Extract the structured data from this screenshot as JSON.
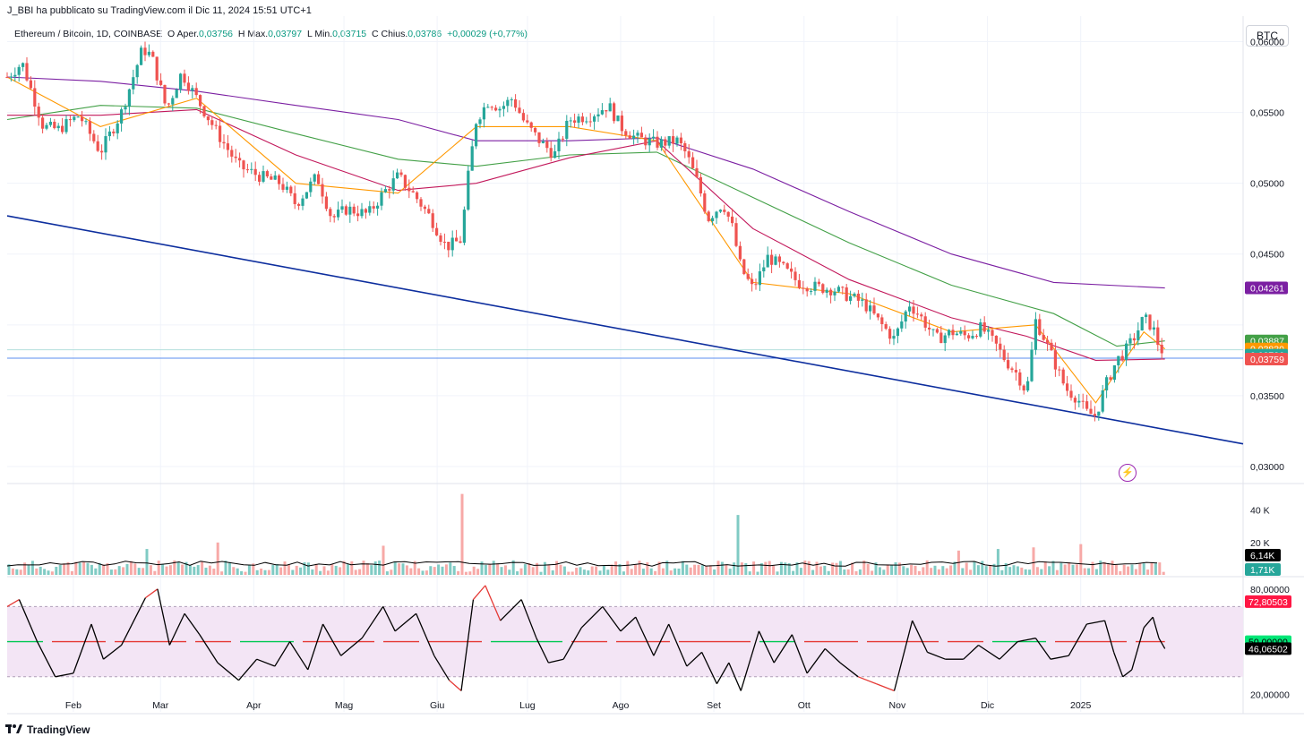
{
  "header": {
    "published": "J_BBI ha pubblicato su TradingView.com il Dic 11, 2024 15:51 UTC+1",
    "symbol": "Ethereum / Bitcoin, 1D, COINBASE",
    "o_label": "O",
    "o_prefix": "Aper.",
    "o_value": "0,03756",
    "h_label": "H",
    "h_prefix": "Max.",
    "h_value": "0,03797",
    "l_label": "L",
    "l_prefix": "Min.",
    "l_value": "0,03715",
    "c_label": "C",
    "c_prefix": "Chius.",
    "c_value": "0,03786",
    "change": "+0,00029 (+0,77%)",
    "currency_button": "BTC"
  },
  "footer": {
    "brand": "TradingView",
    "logo_icon": "tradingview-logo-icon"
  },
  "colors": {
    "up": "#26a69a",
    "down": "#ef5350",
    "ma_purple": "#7b1fa2",
    "ma_green": "#43a047",
    "ma_red": "#c2185b",
    "ma_orange": "#ff9800",
    "trendline": "#0d2e9e",
    "rsi_band": "#f3e5f5"
  },
  "chart_data": [
    {
      "type": "candlestick",
      "pane": "price",
      "x_ticks": [
        "Feb",
        "Mar",
        "Apr",
        "Mag",
        "Giu",
        "Lug",
        "Ago",
        "Set",
        "Ott",
        "Nov",
        "Dic",
        "2025"
      ],
      "y_ticks": [
        "0,06000",
        "0,05500",
        "0,05000",
        "0,04500",
        "0,03500",
        "0,03000"
      ],
      "ylim": [
        0.0288,
        0.0618
      ],
      "price_path": [
        [
          "2024-01-10",
          0.0575
        ],
        [
          "2024-01-15",
          0.0585
        ],
        [
          "2024-01-22",
          0.054
        ],
        [
          "2024-01-27",
          0.0538
        ],
        [
          "2024-02-03",
          0.0548
        ],
        [
          "2024-02-10",
          0.0522
        ],
        [
          "2024-02-17",
          0.055
        ],
        [
          "2024-02-24",
          0.0595
        ],
        [
          "2024-02-27",
          0.059
        ],
        [
          "2024-03-03",
          0.0552
        ],
        [
          "2024-03-08",
          0.0578
        ],
        [
          "2024-03-13",
          0.056
        ],
        [
          "2024-03-20",
          0.0535
        ],
        [
          "2024-03-27",
          0.0512
        ],
        [
          "2024-04-03",
          0.0505
        ],
        [
          "2024-04-10",
          0.05
        ],
        [
          "2024-04-15",
          0.0485
        ],
        [
          "2024-04-22",
          0.0505
        ],
        [
          "2024-04-27",
          0.0475
        ],
        [
          "2024-05-02",
          0.0482
        ],
        [
          "2024-05-09",
          0.0478
        ],
        [
          "2024-05-14",
          0.0493
        ],
        [
          "2024-05-19",
          0.0505
        ],
        [
          "2024-05-25",
          0.049
        ],
        [
          "2024-05-30",
          0.0475
        ],
        [
          "2024-06-04",
          0.0455
        ],
        [
          "2024-06-09",
          0.046
        ],
        [
          "2024-06-11",
          0.05
        ],
        [
          "2024-06-14",
          0.0545
        ],
        [
          "2024-06-18",
          0.0558
        ],
        [
          "2024-06-22",
          0.0553
        ],
        [
          "2024-06-26",
          0.056
        ],
        [
          "2024-06-30",
          0.0543
        ],
        [
          "2024-07-05",
          0.053
        ],
        [
          "2024-07-10",
          0.052
        ],
        [
          "2024-07-15",
          0.0545
        ],
        [
          "2024-07-22",
          0.0548
        ],
        [
          "2024-07-28",
          0.0555
        ],
        [
          "2024-08-01",
          0.054
        ],
        [
          "2024-08-06",
          0.0532
        ],
        [
          "2024-08-13",
          0.0528
        ],
        [
          "2024-08-20",
          0.053
        ],
        [
          "2024-08-23",
          0.052
        ],
        [
          "2024-08-27",
          0.0498
        ],
        [
          "2024-08-30",
          0.0475
        ],
        [
          "2024-09-04",
          0.0486
        ],
        [
          "2024-09-07",
          0.047
        ],
        [
          "2024-09-10",
          0.044
        ],
        [
          "2024-09-14",
          0.0425
        ],
        [
          "2024-09-19",
          0.0448
        ],
        [
          "2024-09-24",
          0.044
        ],
        [
          "2024-09-29",
          0.043
        ],
        [
          "2024-10-04",
          0.0427
        ],
        [
          "2024-10-11",
          0.0425
        ],
        [
          "2024-10-16",
          0.042
        ],
        [
          "2024-10-21",
          0.0415
        ],
        [
          "2024-10-26",
          0.0402
        ],
        [
          "2024-10-31",
          0.039
        ],
        [
          "2024-11-05",
          0.0415
        ],
        [
          "2024-11-09",
          0.0405
        ],
        [
          "2024-11-14",
          0.039
        ],
        [
          "2024-11-19",
          0.0395
        ],
        [
          "2024-11-24",
          0.0392
        ],
        [
          "2024-11-29",
          0.0398
        ],
        [
          "2024-12-04",
          0.0385
        ],
        [
          "2024-12-07",
          0.0375
        ],
        [
          "2024-12-11",
          0.0365
        ],
        [
          "2024-12-14",
          0.0352
        ],
        [
          "2024-12-17",
          0.0403
        ],
        [
          "2024-12-20",
          0.039
        ],
        [
          "2024-12-23",
          0.0375
        ],
        [
          "2024-12-27",
          0.0355
        ],
        [
          "2024-12-31",
          0.0348
        ],
        [
          "2025-01-03",
          0.0338
        ],
        [
          "2025-01-06",
          0.0336
        ],
        [
          "2025-01-09",
          0.0356
        ],
        [
          "2025-01-13",
          0.0375
        ],
        [
          "2025-01-16",
          0.0382
        ],
        [
          "2025-01-19",
          0.0392
        ],
        [
          "2025-01-22",
          0.0405
        ],
        [
          "2025-01-25",
          0.0398
        ],
        [
          "2025-01-27",
          0.0385
        ],
        [
          "2025-01-29",
          0.0379
        ]
      ],
      "moving_averages": [
        {
          "color_key": "ma_purple",
          "points": [
            [
              "2024-01-10",
              0.0575
            ],
            [
              "2024-02-10",
              0.0572
            ],
            [
              "2024-03-13",
              0.0565
            ],
            [
              "2024-04-15",
              0.0555
            ],
            [
              "2024-05-19",
              0.0545
            ],
            [
              "2024-06-14",
              0.053
            ],
            [
              "2024-07-15",
              0.053
            ],
            [
              "2024-08-13",
              0.0532
            ],
            [
              "2024-09-14",
              0.051
            ],
            [
              "2024-10-16",
              0.048
            ],
            [
              "2024-11-19",
              0.045
            ],
            [
              "2024-12-23",
              0.043
            ],
            [
              "2025-01-29",
              0.04261
            ]
          ]
        },
        {
          "color_key": "ma_green",
          "points": [
            [
              "2024-01-10",
              0.0545
            ],
            [
              "2024-02-10",
              0.0555
            ],
            [
              "2024-03-13",
              0.0553
            ],
            [
              "2024-04-15",
              0.0535
            ],
            [
              "2024-05-19",
              0.0517
            ],
            [
              "2024-06-14",
              0.0512
            ],
            [
              "2024-07-15",
              0.052
            ],
            [
              "2024-08-13",
              0.0522
            ],
            [
              "2024-09-14",
              0.049
            ],
            [
              "2024-10-16",
              0.0458
            ],
            [
              "2024-11-19",
              0.0428
            ],
            [
              "2024-12-23",
              0.0408
            ],
            [
              "2025-01-13",
              0.0385
            ],
            [
              "2025-01-29",
              0.03887
            ]
          ]
        },
        {
          "color_key": "ma_red",
          "points": [
            [
              "2024-01-10",
              0.0548
            ],
            [
              "2024-02-10",
              0.0548
            ],
            [
              "2024-03-13",
              0.0552
            ],
            [
              "2024-04-15",
              0.052
            ],
            [
              "2024-05-19",
              0.0495
            ],
            [
              "2024-06-14",
              0.05
            ],
            [
              "2024-07-15",
              0.0518
            ],
            [
              "2024-08-13",
              0.053
            ],
            [
              "2024-09-14",
              0.0468
            ],
            [
              "2024-10-16",
              0.0432
            ],
            [
              "2024-11-19",
              0.0405
            ],
            [
              "2024-12-14",
              0.0392
            ],
            [
              "2025-01-06",
              0.0375
            ],
            [
              "2025-01-29",
              0.03759
            ]
          ]
        },
        {
          "color_key": "ma_orange",
          "points": [
            [
              "2024-01-10",
              0.0575
            ],
            [
              "2024-02-10",
              0.054
            ],
            [
              "2024-03-13",
              0.056
            ],
            [
              "2024-04-15",
              0.05
            ],
            [
              "2024-05-19",
              0.0493
            ],
            [
              "2024-06-14",
              0.054
            ],
            [
              "2024-07-15",
              0.054
            ],
            [
              "2024-08-13",
              0.053
            ],
            [
              "2024-09-14",
              0.043
            ],
            [
              "2024-10-16",
              0.0422
            ],
            [
              "2024-11-19",
              0.0395
            ],
            [
              "2024-12-17",
              0.04
            ],
            [
              "2025-01-06",
              0.0345
            ],
            [
              "2025-01-22",
              0.0395
            ],
            [
              "2025-01-29",
              0.0383
            ]
          ]
        }
      ],
      "trendline": [
        [
          "2024-01-10",
          0.0477
        ],
        [
          "2025-02-24",
          0.0316
        ]
      ],
      "horizontal_line": 0.03765,
      "current_price_line": 0.03786,
      "price_labels": [
        {
          "value": "0,04261",
          "color_key": "ma_purple",
          "price": 0.04261
        },
        {
          "value": "0,03887",
          "color_key": "ma_green",
          "price": 0.03887
        },
        {
          "value": "0,03830",
          "color_key": "ma_orange",
          "price": 0.0383
        },
        {
          "value": "0,03786",
          "color_key": "up",
          "price": 0.03786
        },
        {
          "value": "0,03759",
          "color_key": "down",
          "price": 0.03759
        }
      ]
    },
    {
      "type": "bar",
      "pane": "volume",
      "y_ticks": [
        "40 K",
        "20 K"
      ],
      "ylim": [
        0,
        52000
      ],
      "volume_spikes": [
        {
          "date": "2024-06-10",
          "value": 50000
        },
        {
          "date": "2024-06-09",
          "value": 33000
        },
        {
          "date": "2024-09-09",
          "value": 37000
        },
        {
          "date": "2024-03-20",
          "value": 20000
        },
        {
          "date": "2024-05-14",
          "value": 18000
        },
        {
          "date": "2024-02-26",
          "value": 16000
        },
        {
          "date": "2024-11-22",
          "value": 15000
        },
        {
          "date": "2024-12-04",
          "value": 16000
        },
        {
          "date": "2024-12-17",
          "value": 17000
        },
        {
          "date": "2025-01-01",
          "value": 19000
        }
      ],
      "baseline_volume": 6000,
      "labels": [
        {
          "value": "6,14K",
          "bg": "#000000",
          "volume": 6140
        },
        {
          "value": "1,71K",
          "bg": "#26a69a",
          "volume": 1710
        }
      ]
    },
    {
      "type": "line",
      "pane": "rsi",
      "y_ticks": [
        "80,00000",
        "20,00000"
      ],
      "hidden_ticks": [
        "60,00000",
        "40,00000"
      ],
      "ylim": [
        10,
        85
      ],
      "band": [
        30,
        70
      ],
      "labels": [
        {
          "value": "72,80503",
          "bg": "#ff1744",
          "level": 72.80503
        },
        {
          "value": "50,00000",
          "bg": "#00e676",
          "level": 50
        },
        {
          "value": "46,06502",
          "bg": "#000000",
          "level": 46.06502
        }
      ],
      "rsi_path": [
        [
          "2024-01-10",
          70
        ],
        [
          "2024-01-14",
          74
        ],
        [
          "2024-01-20",
          50
        ],
        [
          "2024-01-26",
          30
        ],
        [
          "2024-02-01",
          32
        ],
        [
          "2024-02-07",
          60
        ],
        [
          "2024-02-11",
          40
        ],
        [
          "2024-02-17",
          48
        ],
        [
          "2024-02-25",
          75
        ],
        [
          "2024-02-29",
          80
        ],
        [
          "2024-03-04",
          48
        ],
        [
          "2024-03-09",
          66
        ],
        [
          "2024-03-14",
          54
        ],
        [
          "2024-03-20",
          38
        ],
        [
          "2024-03-27",
          28
        ],
        [
          "2024-04-02",
          40
        ],
        [
          "2024-04-08",
          36
        ],
        [
          "2024-04-13",
          50
        ],
        [
          "2024-04-19",
          34
        ],
        [
          "2024-04-24",
          60
        ],
        [
          "2024-04-30",
          42
        ],
        [
          "2024-05-07",
          52
        ],
        [
          "2024-05-14",
          70
        ],
        [
          "2024-05-18",
          56
        ],
        [
          "2024-05-25",
          66
        ],
        [
          "2024-05-31",
          42
        ],
        [
          "2024-06-05",
          28
        ],
        [
          "2024-06-09",
          22
        ],
        [
          "2024-06-13",
          74
        ],
        [
          "2024-06-17",
          82
        ],
        [
          "2024-06-22",
          62
        ],
        [
          "2024-06-29",
          74
        ],
        [
          "2024-07-04",
          52
        ],
        [
          "2024-07-08",
          38
        ],
        [
          "2024-07-13",
          40
        ],
        [
          "2024-07-19",
          58
        ],
        [
          "2024-07-26",
          70
        ],
        [
          "2024-08-01",
          56
        ],
        [
          "2024-08-06",
          64
        ],
        [
          "2024-08-12",
          42
        ],
        [
          "2024-08-17",
          60
        ],
        [
          "2024-08-23",
          36
        ],
        [
          "2024-08-28",
          44
        ],
        [
          "2024-09-02",
          26
        ],
        [
          "2024-09-06",
          38
        ],
        [
          "2024-09-10",
          22
        ],
        [
          "2024-09-16",
          56
        ],
        [
          "2024-09-21",
          38
        ],
        [
          "2024-09-27",
          54
        ],
        [
          "2024-10-02",
          32
        ],
        [
          "2024-10-08",
          46
        ],
        [
          "2024-10-13",
          38
        ],
        [
          "2024-10-19",
          30
        ],
        [
          "2024-10-25",
          26
        ],
        [
          "2024-10-31",
          22
        ],
        [
          "2024-11-06",
          62
        ],
        [
          "2024-11-11",
          44
        ],
        [
          "2024-11-17",
          40
        ],
        [
          "2024-11-23",
          40
        ],
        [
          "2024-11-28",
          48
        ],
        [
          "2024-12-05",
          40
        ],
        [
          "2024-12-11",
          50
        ],
        [
          "2024-12-17",
          52
        ],
        [
          "2024-12-22",
          40
        ],
        [
          "2024-12-28",
          42
        ],
        [
          "2025-01-03",
          60
        ],
        [
          "2025-01-09",
          62
        ],
        [
          "2025-01-12",
          44
        ],
        [
          "2025-01-15",
          30
        ],
        [
          "2025-01-18",
          34
        ],
        [
          "2025-01-22",
          58
        ],
        [
          "2025-01-25",
          64
        ],
        [
          "2025-01-27",
          52
        ],
        [
          "2025-01-29",
          46
        ]
      ]
    }
  ]
}
